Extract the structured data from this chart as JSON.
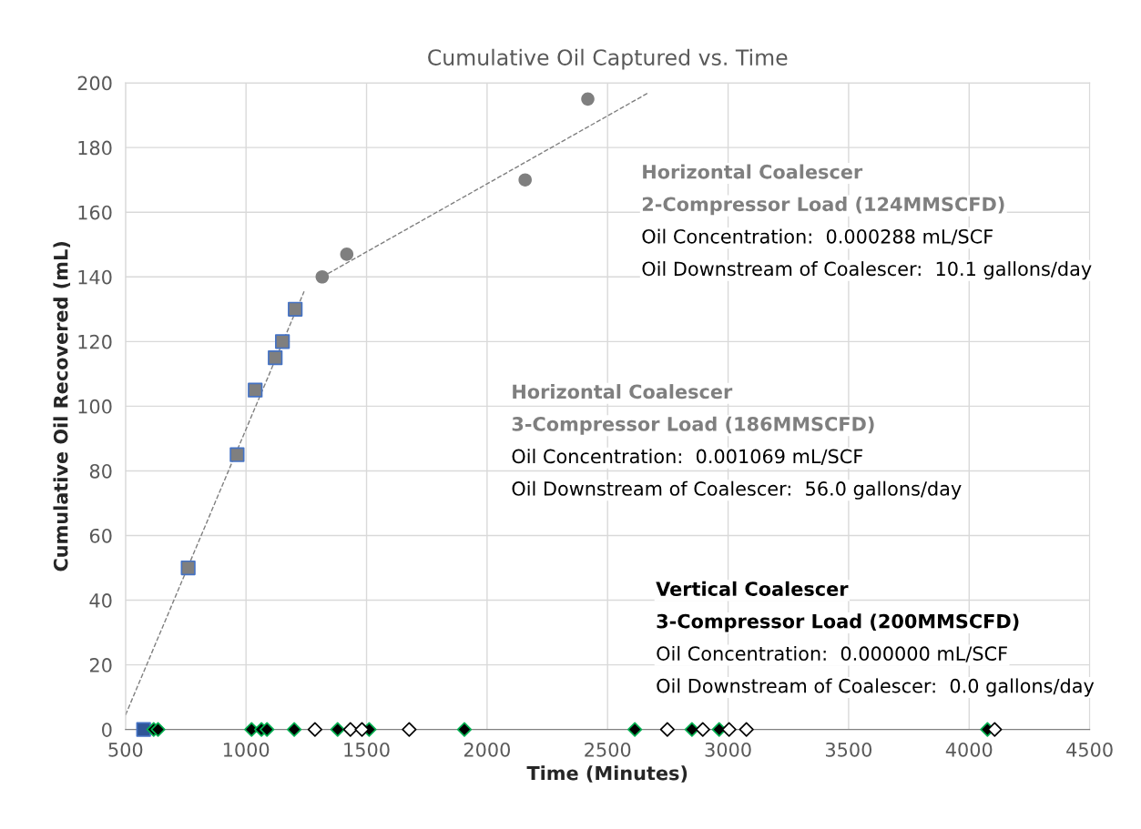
{
  "chart_data": {
    "type": "scatter",
    "title": "Cumulative Oil Captured vs. Time",
    "xlabel": "Time (Minutes)",
    "ylabel": "Cumulative Oil Recovered (mL)",
    "xlim": [
      500,
      4500
    ],
    "xticks": [
      500,
      1000,
      1500,
      2000,
      2500,
      3000,
      3500,
      4000,
      4500
    ],
    "ylim": [
      0,
      200
    ],
    "yticks": [
      0,
      20,
      40,
      60,
      80,
      100,
      120,
      140,
      160,
      180,
      200
    ],
    "grid": true,
    "legend": false,
    "series": [
      {
        "type": "line",
        "line_style": "dashed",
        "marker": "none",
        "color": "#7f7f7f",
        "x": [
          500,
          1241
        ],
        "values": [
          4.5,
          135.5
        ]
      },
      {
        "type": "line",
        "line_style": "dashed",
        "marker": "none",
        "color": "#7f7f7f",
        "x": [
          1316,
          2666
        ],
        "values": [
          140,
          196.8
        ]
      },
      {
        "marker": "square",
        "color": "#7f7f7f",
        "x": [
          760,
          963,
          1038,
          1121,
          1151,
          1204
        ],
        "values": [
          50,
          85,
          105,
          115,
          120,
          130
        ]
      },
      {
        "marker": "square",
        "color": "#2f5597",
        "x": [
          575
        ],
        "values": [
          0
        ]
      },
      {
        "marker": "circle",
        "color": "#7f7f7f",
        "x": [
          1316,
          1418,
          2158,
          2418
        ],
        "values": [
          140,
          147,
          170,
          195
        ]
      },
      {
        "marker": "diamond",
        "color": "#000000",
        "x": [
          617,
          635,
          1023,
          1064,
          1087,
          1200,
          1380,
          1511,
          1906,
          2613,
          2850,
          2963,
          4076
        ],
        "values": [
          0,
          0,
          0,
          0,
          0,
          0,
          0,
          0,
          0,
          0,
          0,
          0,
          0
        ]
      },
      {
        "marker": "diamond",
        "color": "#ffffff",
        "x": [
          1286,
          1433,
          1481,
          1677,
          2748,
          2895,
          3004,
          3076,
          4106
        ],
        "values": [
          0,
          0,
          0,
          0,
          0,
          0,
          0,
          0,
          0
        ]
      }
    ],
    "annotations": [
      "Horizontal Coalescer",
      "2-Compressor Load (124MMSCFD)",
      "Oil Concentration:  0.000288 mL/SCF",
      "Oil Downstream of Coalescer:  10.1 gallons/day",
      "Horizontal Coalescer",
      "3-Compressor Load (186MMSCFD)",
      "Oil Concentration:  0.001069 mL/SCF",
      "Oil Downstream of Coalescer:  56.0 gallons/day",
      "Vertical Coalescer",
      "3-Compressor Load (200MMSCFD)",
      "Oil Concentration:  0.000000 mL/SCF",
      "Oil Downstream of Coalescer:  0.0 gallons/day"
    ]
  }
}
